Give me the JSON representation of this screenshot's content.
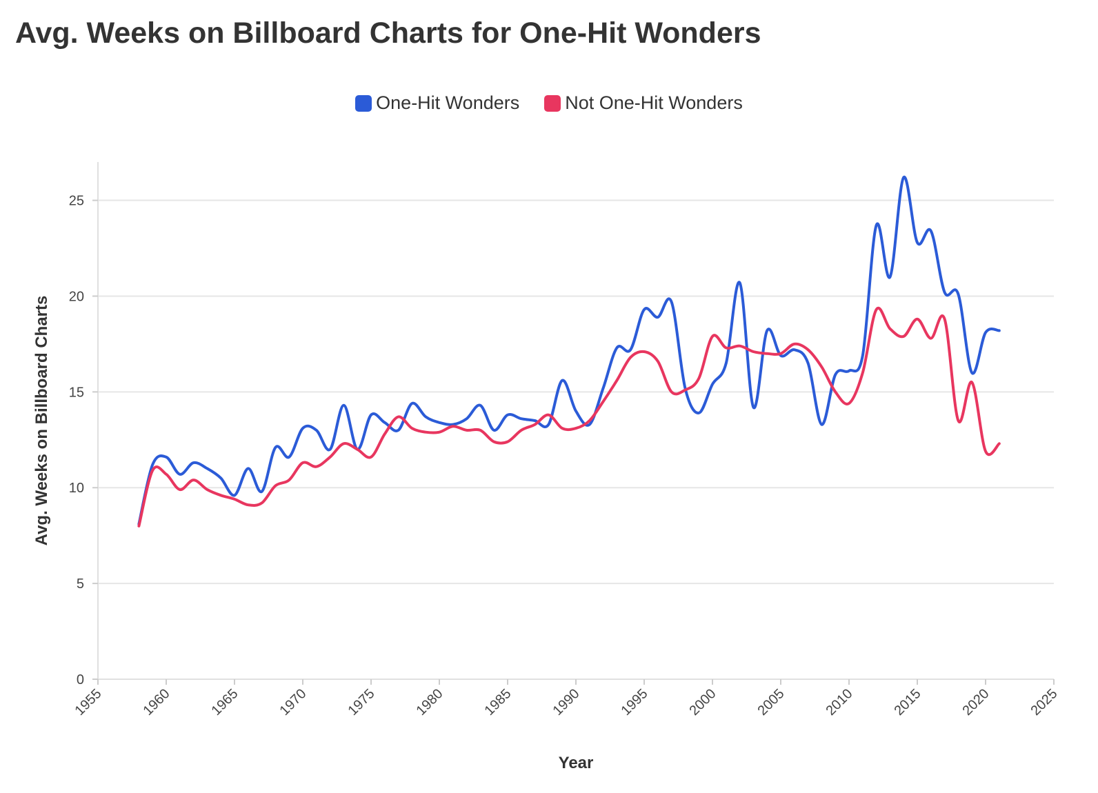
{
  "chart_data": {
    "type": "line",
    "title": "Avg. Weeks on Billboard Charts for One-Hit Wonders",
    "xlabel": "Year",
    "ylabel": "Avg. Weeks on Billboard Charts",
    "xlim": [
      1955,
      2025
    ],
    "ylim": [
      0,
      27
    ],
    "x_ticks": [
      1955,
      1960,
      1965,
      1970,
      1975,
      1980,
      1985,
      1990,
      1995,
      2000,
      2005,
      2010,
      2015,
      2020,
      2025
    ],
    "y_ticks": [
      0,
      5,
      10,
      15,
      20,
      25
    ],
    "grid": "horizontal",
    "legend_position": "top-center",
    "x": [
      1958,
      1959,
      1960,
      1961,
      1962,
      1963,
      1964,
      1965,
      1966,
      1967,
      1968,
      1969,
      1970,
      1971,
      1972,
      1973,
      1974,
      1975,
      1976,
      1977,
      1978,
      1979,
      1980,
      1981,
      1982,
      1983,
      1984,
      1985,
      1986,
      1987,
      1988,
      1989,
      1990,
      1991,
      1992,
      1993,
      1994,
      1995,
      1996,
      1997,
      1998,
      1999,
      2000,
      2001,
      2002,
      2003,
      2004,
      2005,
      2006,
      2007,
      2008,
      2009,
      2010,
      2011,
      2012,
      2013,
      2014,
      2015,
      2016,
      2017,
      2018,
      2019,
      2020,
      2021
    ],
    "series": [
      {
        "name": "One-Hit Wonders",
        "color": "#2b5bd7",
        "values": [
          8.1,
          11.2,
          11.6,
          10.7,
          11.3,
          11.0,
          10.5,
          9.6,
          11.0,
          9.8,
          12.1,
          11.6,
          13.1,
          13.0,
          12.0,
          14.3,
          12.0,
          13.8,
          13.4,
          13.0,
          14.4,
          13.7,
          13.4,
          13.3,
          13.6,
          14.3,
          13.0,
          13.8,
          13.6,
          13.5,
          13.3,
          15.6,
          14.0,
          13.3,
          15.2,
          17.3,
          17.2,
          19.3,
          18.9,
          19.7,
          15.2,
          13.9,
          15.4,
          16.5,
          20.7,
          14.2,
          18.2,
          16.9,
          17.2,
          16.5,
          13.3,
          15.9,
          16.1,
          16.9,
          23.7,
          21.0,
          26.2,
          22.8,
          23.4,
          20.2,
          20.1,
          16.0,
          18.1,
          18.2
        ]
      },
      {
        "name": "Not One-Hit Wonders",
        "color": "#e8365f",
        "values": [
          8.0,
          10.9,
          10.7,
          9.9,
          10.4,
          9.9,
          9.6,
          9.4,
          9.1,
          9.2,
          10.1,
          10.4,
          11.3,
          11.1,
          11.6,
          12.3,
          12.0,
          11.6,
          12.8,
          13.7,
          13.1,
          12.9,
          12.9,
          13.2,
          13.0,
          13.0,
          12.4,
          12.4,
          13.0,
          13.3,
          13.8,
          13.1,
          13.1,
          13.5,
          14.5,
          15.6,
          16.8,
          17.1,
          16.6,
          15.0,
          15.1,
          15.7,
          17.9,
          17.3,
          17.4,
          17.1,
          17.0,
          17.0,
          17.5,
          17.2,
          16.3,
          15.0,
          14.4,
          16.0,
          19.3,
          18.3,
          17.9,
          18.8,
          17.8,
          18.8,
          13.5,
          15.5,
          11.9,
          12.3
        ]
      }
    ]
  }
}
